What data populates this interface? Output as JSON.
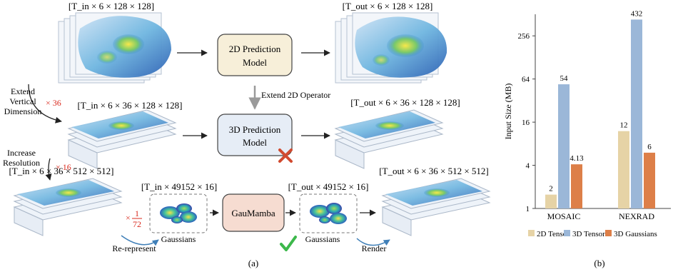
{
  "panel_a": {
    "caption": "(a)",
    "row1": {
      "input_shape": "[T_in × 6 × 128 × 128]",
      "output_shape": "[T_out × 6 × 128 × 128]",
      "model_label_line1": "2D Prediction",
      "model_label_line2": "Model"
    },
    "extend_operator_label": "Extend 2D Operator",
    "extend_vertical": {
      "line1": "Extend",
      "line2": "Vertical",
      "line3": "Dimension",
      "factor": "× 36"
    },
    "row2": {
      "input_shape": "[T_in × 6 × 36 × 128 × 128]",
      "output_shape": "[T_out × 6 × 36 × 128 × 128]",
      "model_label_line1": "3D Prediction",
      "model_label_line2": "Model"
    },
    "increase_resolution": {
      "line1": "Increase",
      "line2": "Resolution",
      "factor": "× 16"
    },
    "row3": {
      "input_shape": "[T_in × 6 × 36 × 512 × 512]",
      "gauss_in_shape": "[T_in × 49152 × 16]",
      "model_label": "GauMamba",
      "gauss_out_shape": "[T_out × 49152 × 16]",
      "output_shape": "[T_out × 6 × 36 × 512 × 512]",
      "factor_prefix": "×",
      "factor_num": "1",
      "factor_den": "72",
      "gaussians_label_in": "Gaussians",
      "gaussians_label_out": "Gaussians",
      "rerepresent_label": "Re-represent",
      "render_label": "Render"
    }
  },
  "panel_b": {
    "caption": "(b)"
  },
  "colors": {
    "tan": "#e6d3a6",
    "blue": "#9bb7d8",
    "orange": "#dd7f48",
    "red": "#d92b1f",
    "green": "#3cb84b",
    "box1": "#f7efd9",
    "box2": "#e6edf6",
    "box3": "#f6dcd1"
  },
  "chart_data": {
    "type": "bar",
    "ylabel": "Input Size (MB)",
    "yscale": "log2",
    "ylim": [
      1,
      512
    ],
    "yticks": [
      1,
      4,
      16,
      64,
      256
    ],
    "ytick_labels": [
      "1",
      "4",
      "16",
      "64",
      "256"
    ],
    "categories": [
      "MOSAIC",
      "NEXRAD"
    ],
    "series": [
      {
        "name": "2D Tensor",
        "color": "#e6d3a6",
        "values": [
          1.56,
          12
        ],
        "labels": [
          "2",
          "12"
        ]
      },
      {
        "name": "3D Tensor",
        "color": "#9bb7d8",
        "values": [
          54,
          432
        ],
        "labels": [
          "54",
          "432"
        ]
      },
      {
        "name": "3D Gaussians",
        "color": "#dd7f48",
        "values": [
          4.13,
          6
        ],
        "labels": [
          "4.13",
          "6"
        ]
      }
    ],
    "legend_position": "bottom",
    "grid": false
  }
}
